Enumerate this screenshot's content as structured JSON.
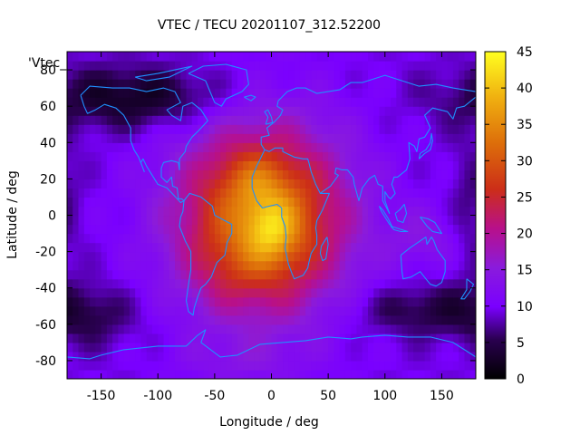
{
  "chart_data": {
    "type": "heatmap",
    "title": "VTEC / TECU 20201107_312.52200",
    "xlabel": "Longitude / deg",
    "ylabel": "Latitude / deg",
    "xlim": [
      -180,
      180
    ],
    "ylim": [
      -90,
      90
    ],
    "x_ticks": [
      "-150",
      "-100",
      "-50",
      "0",
      "50",
      "100",
      "150"
    ],
    "y_ticks": [
      "-80",
      "-60",
      "-40",
      "-20",
      "0",
      "20",
      "40",
      "60",
      "80"
    ],
    "colorbar": {
      "range": [
        0,
        45
      ],
      "ticks": [
        "0",
        "5",
        "10",
        "15",
        "20",
        "25",
        "30",
        "35",
        "40",
        "45"
      ],
      "palette": "black-purple-red-orange-yellow"
    },
    "legend_label": "'Vtec_",
    "overlay": "coastlines",
    "coastline_color": "#1e90ff",
    "grid": false,
    "peak": {
      "lon": 0,
      "lat": -5,
      "value": 42
    },
    "field_samples": [
      {
        "lon": -100,
        "lat": 0,
        "value": 12
      },
      {
        "lon": -50,
        "lat": 0,
        "value": 25
      },
      {
        "lon": 0,
        "lat": 20,
        "value": 33
      },
      {
        "lon": 0,
        "lat": -20,
        "value": 34
      },
      {
        "lon": 50,
        "lat": 0,
        "value": 25
      },
      {
        "lon": 100,
        "lat": 0,
        "value": 13
      },
      {
        "lon": 150,
        "lat": -10,
        "value": 17
      },
      {
        "lon": -150,
        "lat": 60,
        "value": 3
      },
      {
        "lon": 150,
        "lat": -50,
        "value": 4
      }
    ]
  }
}
